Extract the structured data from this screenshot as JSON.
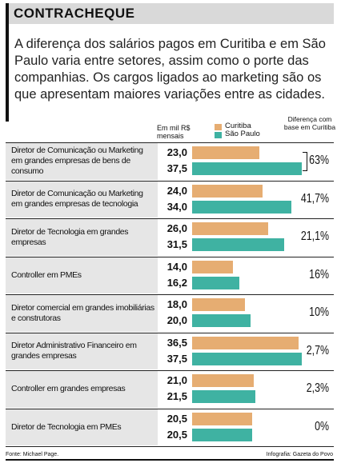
{
  "header": {
    "title": "CONTRACHEQUE",
    "intro": "A diferença dos salários pagos em Curitiba e em São Paulo varia entre setores, assim como o porte das companhias. Os cargos ligados ao marketing são os que apresentam maiores variações entre as cidades."
  },
  "column_headers": {
    "units": "Em mil R$ mensais",
    "difference": "Diferença com base em Curitiba"
  },
  "colors": {
    "curitiba": "#e6ad72",
    "sao_paulo": "#3fb2a2"
  },
  "chart_data": {
    "type": "bar",
    "orientation": "horizontal",
    "title": "",
    "ylabel": "Em mil R$ mensais",
    "categories": [
      "Diretor de Comunicação ou Marketing em grandes empresas de bens de consumo",
      "Diretor de Comunicação ou Marketing em grandes empresas de tecnologia",
      "Diretor de Tecnologia em grandes empresas",
      "Controller em PMEs",
      "Diretor comercial em grandes imobiliárias e construtoras",
      "Diretor Administrativo Financeiro em grandes empresas",
      "Controller em grandes empresas",
      "Diretor de Tecnologia em PMEs"
    ],
    "series": [
      {
        "name": "Curitiba",
        "values": [
          "23,0",
          "24,0",
          "26,0",
          "14,0",
          "18,0",
          "36,5",
          "21,0",
          "20,5"
        ]
      },
      {
        "name": "São Paulo",
        "values": [
          "37,5",
          "34,0",
          "31,5",
          "16,2",
          "20,0",
          "37,5",
          "21,5",
          "20,5"
        ]
      }
    ],
    "differences": [
      "63%",
      "41,7%",
      "21,1%",
      "16%",
      "10%",
      "2,7%",
      "2,3%",
      "0%"
    ],
    "highlighted_row": 0,
    "xlim": [
      0,
      37.5
    ],
    "legend_position": "top",
    "grid": false
  },
  "footer": {
    "source": "Fonte: Michael Page.",
    "credit": "Infografia: Gazeta do Povo"
  }
}
